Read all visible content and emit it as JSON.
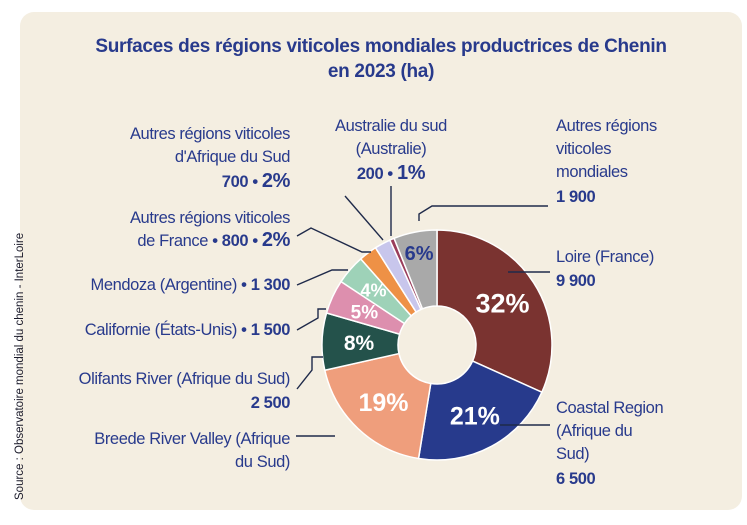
{
  "title_line1": "Surfaces des régions viticoles mondiales productrices de Chenin",
  "title_line2": "en 2023 (ha)",
  "source": "Source : Observatoire mondial du chenin - InterLoire",
  "colors": {
    "loire": "#7a3330",
    "coastal": "#273a8c",
    "breede": "#ef9e7c",
    "olifants": "#24524b",
    "california": "#dd8fae",
    "mendoza": "#9ed2b8",
    "france_other": "#ee9146",
    "africa_other": "#c8c6ec",
    "australia": "#9a3d5b",
    "world_other": "#a9a9a9",
    "text": "#283a8c",
    "panel": "#f4eee1"
  },
  "chart_data": {
    "type": "pie",
    "donut": true,
    "title": "Surfaces des régions viticoles mondiales productrices de Chenin en 2023 (ha)",
    "slices": [
      {
        "key": "loire",
        "label": "Loire (France)",
        "value": 9900,
        "value_text": "9 900",
        "pct_text": "32%"
      },
      {
        "key": "coastal",
        "label": "Coastal Region (Afrique du Sud)",
        "value": 6500,
        "value_text": "6 500",
        "pct_text": "21%"
      },
      {
        "key": "breede",
        "label": "Breede River Valley (Afrique du Sud)",
        "value": 5900,
        "value_text": "",
        "pct_text": "19%"
      },
      {
        "key": "olifants",
        "label": "Olifants River (Afrique du Sud)",
        "value": 2500,
        "value_text": "2 500",
        "pct_text": "8%"
      },
      {
        "key": "california",
        "label": "Californie (États-Unis)",
        "value": 1500,
        "value_text": "1 500",
        "pct_text": "5%"
      },
      {
        "key": "mendoza",
        "label": "Mendoza (Argentine)",
        "value": 1300,
        "value_text": "1 300",
        "pct_text": "4%"
      },
      {
        "key": "france_other",
        "label": "Autres régions viticoles de France",
        "value": 800,
        "value_text": "800",
        "pct_text": "2%"
      },
      {
        "key": "africa_other",
        "label": "Autres régions viticoles d'Afrique du Sud",
        "value": 700,
        "value_text": "700",
        "pct_text": "2%"
      },
      {
        "key": "australia",
        "label": "Australie du sud (Australie)",
        "value": 200,
        "value_text": "200",
        "pct_text": "1%"
      },
      {
        "key": "world_other",
        "label": "Autres régions viticoles mondiales",
        "value": 1900,
        "value_text": "1 900",
        "pct_text": "6%"
      }
    ]
  },
  "labels": {
    "loire": {
      "lines": [
        "Loire (France)"
      ],
      "value": "9 900"
    },
    "coastal": {
      "lines": [
        "Coastal Region",
        "(Afrique du",
        "Sud)"
      ],
      "value": "6 500"
    },
    "breede": {
      "lines": [
        "Breede River Valley (Afrique",
        "du Sud)"
      ]
    },
    "olifants": {
      "lines": [
        "Olifants River (Afrique du Sud)"
      ],
      "value": "2 500"
    },
    "california": {
      "text": "Californie (États-Unis)",
      "sep": " • ",
      "value": "1 500"
    },
    "mendoza": {
      "text": "Mendoza (Argentine)",
      "sep": " • ",
      "value": "1 300"
    },
    "france_other": {
      "line1": "Autres régions viticoles",
      "line2": "de France",
      "sep": " • ",
      "value": "800",
      "sep2": " • ",
      "pct": "2%"
    },
    "africa_other": {
      "line1": "Autres régions viticoles",
      "line2": "d'Afrique du Sud",
      "value": "700",
      "sep": " • ",
      "pct": "2%"
    },
    "australia": {
      "line1": "Australie du sud",
      "line2": "(Australie)",
      "value": "200",
      "sep": " • ",
      "pct": "1%"
    },
    "world_other": {
      "lines": [
        "Autres régions",
        "viticoles",
        "mondiales"
      ],
      "value": "1 900"
    }
  }
}
